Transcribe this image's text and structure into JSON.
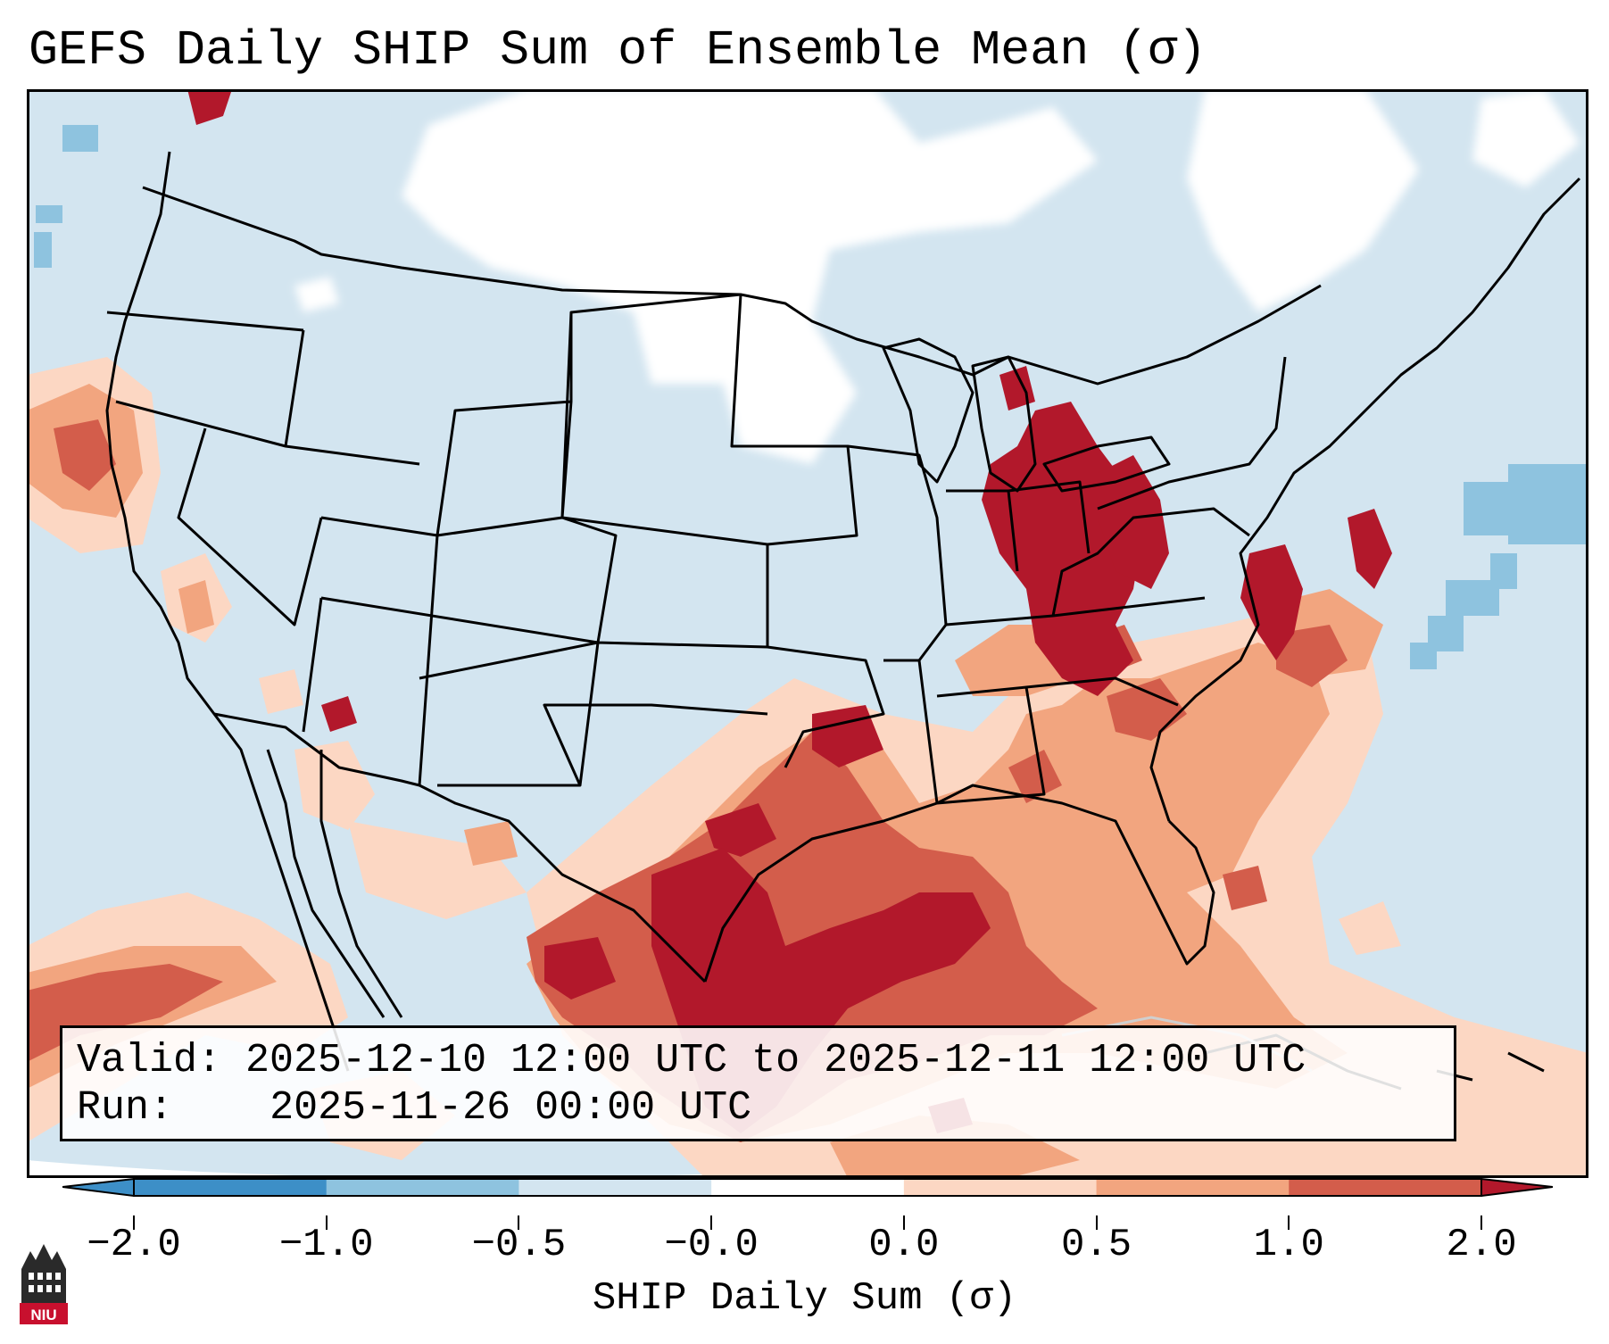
{
  "title": "GEFS Daily SHIP Sum of Ensemble Mean (σ)",
  "info": {
    "valid_label": "Valid:",
    "valid_value": "2025-12-10 12:00 UTC to 2025-12-11 12:00 UTC",
    "run_label": "Run:",
    "run_value": "2025-11-26 00:00 UTC"
  },
  "colorbar": {
    "label": "SHIP Daily Sum (σ)",
    "ticks": [
      "−2.0",
      "−1.0",
      "−0.5",
      "−0.0",
      "0.0",
      "0.5",
      "1.0",
      "2.0"
    ],
    "colors": [
      "#3d8fc7",
      "#8ec3df",
      "#d3e5f0",
      "#ffffff",
      "#fcd7c3",
      "#f2a57f",
      "#d35d4b",
      "#b2182b"
    ],
    "extend": "both"
  },
  "logo_text": "NIU",
  "legend_colors": {
    "very_low": "#3d8fc7",
    "low": "#8ec3df",
    "slightly_low": "#d3e5f0",
    "near_zero": "#ffffff",
    "slightly_high": "#fcd7c3",
    "high": "#f2a57f",
    "higher": "#d35d4b",
    "very_high": "#b2182b"
  }
}
